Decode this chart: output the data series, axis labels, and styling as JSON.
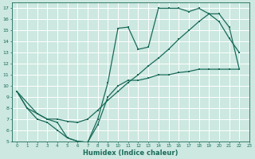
{
  "xlabel": "Humidex (Indice chaleur)",
  "bg_color": "#cce8e0",
  "grid_color": "#ffffff",
  "line_color": "#1a6b5a",
  "xlim": [
    -0.5,
    23
  ],
  "ylim": [
    5,
    17.5
  ],
  "xticks": [
    0,
    1,
    2,
    3,
    4,
    5,
    6,
    7,
    8,
    9,
    10,
    11,
    12,
    13,
    14,
    15,
    16,
    17,
    18,
    19,
    20,
    21,
    22,
    23
  ],
  "yticks": [
    5,
    6,
    7,
    8,
    9,
    10,
    11,
    12,
    13,
    14,
    15,
    16,
    17
  ],
  "curve_a_x": [
    0,
    1,
    2,
    3,
    4,
    5,
    6,
    7,
    8,
    9,
    10,
    11,
    12,
    13,
    14,
    15,
    16,
    17,
    18,
    19,
    20,
    21,
    22
  ],
  "curve_a_y": [
    9.5,
    8.0,
    7.0,
    6.7,
    6.0,
    5.3,
    5.0,
    4.9,
    6.5,
    9.0,
    10.0,
    10.5,
    10.5,
    10.7,
    11.0,
    11.0,
    11.2,
    11.3,
    11.5,
    11.5,
    11.5,
    11.5,
    11.5
  ],
  "curve_b_x": [
    0,
    2,
    3,
    4,
    5,
    6,
    7,
    8,
    9,
    10,
    11,
    12,
    13,
    14,
    15,
    16,
    17,
    18,
    19,
    20,
    21,
    22
  ],
  "curve_b_y": [
    9.5,
    7.5,
    7.0,
    6.7,
    5.3,
    5.0,
    4.9,
    7.0,
    10.3,
    15.2,
    15.3,
    13.3,
    13.5,
    17.0,
    17.0,
    17.0,
    16.7,
    17.0,
    16.5,
    15.8,
    14.3,
    13.0
  ],
  "curve_c_x": [
    0,
    1,
    2,
    3,
    4,
    5,
    6,
    7,
    8,
    9,
    10,
    11,
    12,
    13,
    14,
    15,
    16,
    17,
    18,
    19,
    20,
    21,
    22
  ],
  "curve_c_y": [
    9.5,
    8.0,
    7.5,
    7.0,
    7.0,
    6.8,
    6.7,
    7.0,
    7.8,
    8.7,
    9.5,
    10.3,
    11.0,
    11.8,
    12.5,
    13.3,
    14.2,
    15.0,
    15.8,
    16.5,
    16.5,
    15.3,
    11.5
  ]
}
